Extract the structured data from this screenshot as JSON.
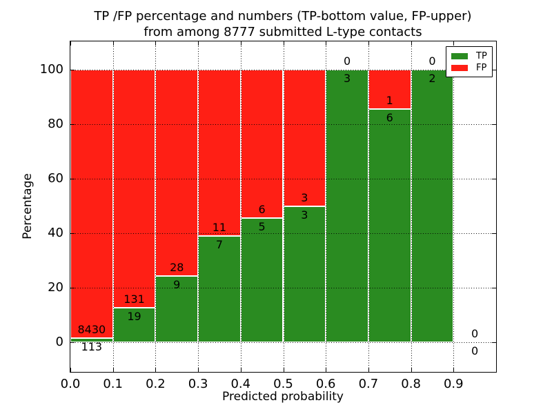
{
  "chart_data": {
    "type": "bar",
    "stacked": true,
    "title": "TP /FP percentage and numbers (TP-bottom value, FP-upper) from among 8777 submitted L-type contacts",
    "title_lines": [
      "TP /FP percentage and numbers (TP-bottom value, FP-upper)",
      "from among 8777 submitted L-type contacts"
    ],
    "xlabel": "Predicted probability",
    "ylabel": "Percentage",
    "xlim": [
      0.0,
      1.0
    ],
    "ylim": [
      -11,
      110.5
    ],
    "xtick_values": [
      0.0,
      0.1,
      0.2,
      0.3,
      0.4,
      0.5,
      0.6,
      0.7,
      0.8,
      0.9
    ],
    "xtick_labels": [
      "0.0",
      "0.1",
      "0.2",
      "0.3",
      "0.4",
      "0.5",
      "0.6",
      "0.7",
      "0.8",
      "0.9"
    ],
    "ytick_values": [
      0,
      20,
      40,
      60,
      80,
      100
    ],
    "ytick_labels": [
      "0",
      "20",
      "40",
      "60",
      "80",
      "100"
    ],
    "grid": "dotted",
    "legend": {
      "position": "upper right",
      "entries": [
        {
          "label": "TP",
          "color": "#2a8b21"
        },
        {
          "label": "FP",
          "color": "#ff1f15"
        }
      ]
    },
    "total_contacts": 8777,
    "bins": [
      {
        "x0": 0.0,
        "x1": 0.1,
        "tp_count": 113,
        "fp_count": 8430,
        "tp_pct": 1.32,
        "fp_pct": 98.68
      },
      {
        "x0": 0.1,
        "x1": 0.2,
        "tp_count": 19,
        "fp_count": 131,
        "tp_pct": 12.67,
        "fp_pct": 87.33
      },
      {
        "x0": 0.2,
        "x1": 0.3,
        "tp_count": 9,
        "fp_count": 28,
        "tp_pct": 24.32,
        "fp_pct": 75.68
      },
      {
        "x0": 0.3,
        "x1": 0.4,
        "tp_count": 7,
        "fp_count": 11,
        "tp_pct": 38.89,
        "fp_pct": 61.11
      },
      {
        "x0": 0.4,
        "x1": 0.5,
        "tp_count": 5,
        "fp_count": 6,
        "tp_pct": 45.45,
        "fp_pct": 54.55
      },
      {
        "x0": 0.5,
        "x1": 0.6,
        "tp_count": 3,
        "fp_count": 3,
        "tp_pct": 50.0,
        "fp_pct": 50.0
      },
      {
        "x0": 0.6,
        "x1": 0.7,
        "tp_count": 3,
        "fp_count": 0,
        "tp_pct": 100.0,
        "fp_pct": 0.0
      },
      {
        "x0": 0.7,
        "x1": 0.8,
        "tp_count": 6,
        "fp_count": 1,
        "tp_pct": 85.71,
        "fp_pct": 14.29
      },
      {
        "x0": 0.8,
        "x1": 0.9,
        "tp_count": 2,
        "fp_count": 0,
        "tp_pct": 100.0,
        "fp_pct": 0.0
      },
      {
        "x0": 0.9,
        "x1": 1.0,
        "tp_count": 0,
        "fp_count": 0,
        "tp_pct": 0.0,
        "fp_pct": 0.0
      }
    ]
  }
}
